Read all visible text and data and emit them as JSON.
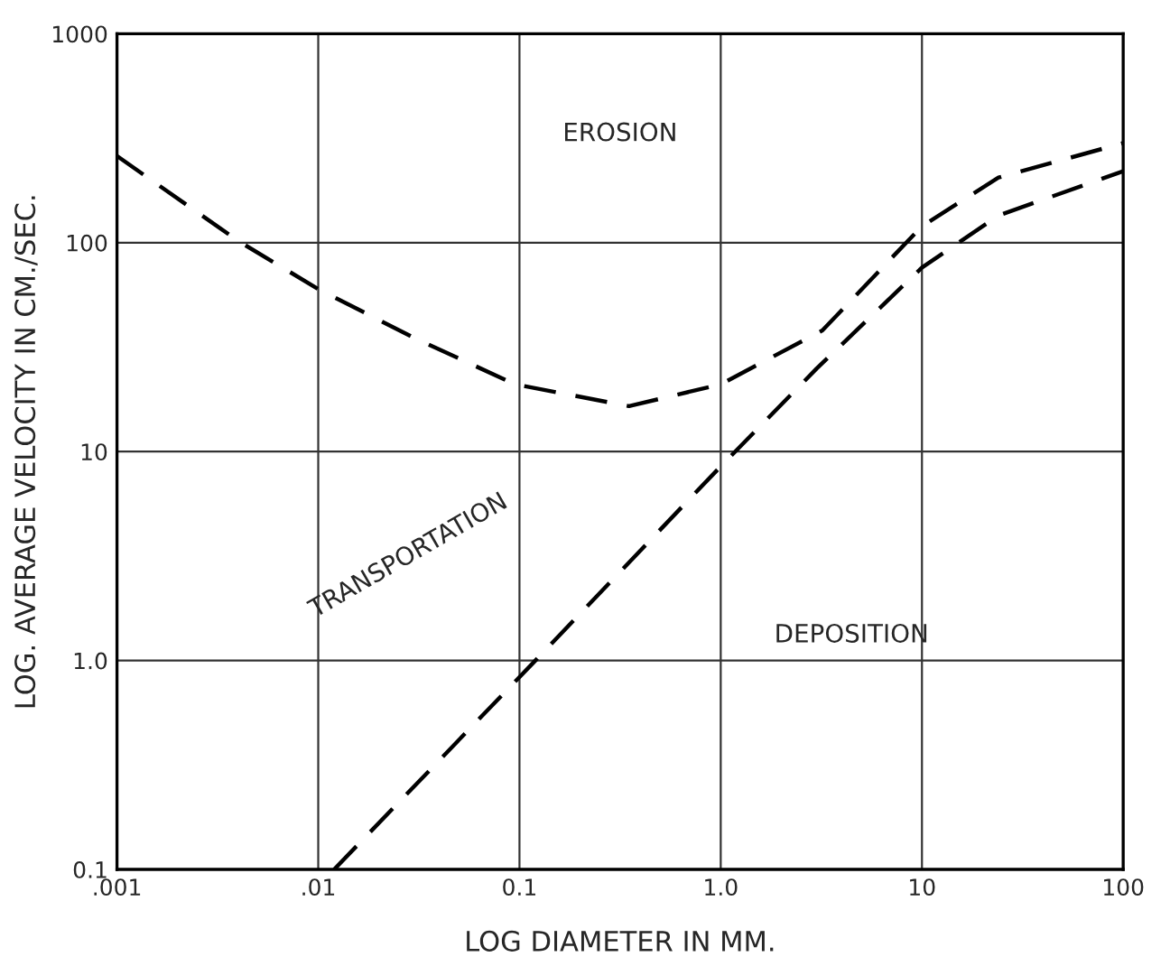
{
  "chart_data": {
    "type": "line",
    "xlabel": "LOG DIAMETER IN MM.",
    "ylabel": "LOG. AVERAGE VELOCITY IN CM./SEC.",
    "log": "xy",
    "grid": true,
    "line_style": "dashed",
    "marker": "none",
    "xlim": [
      0.001,
      100
    ],
    "ylim": [
      0.1,
      1000
    ],
    "xticks": [
      {
        "value": 0.001,
        "label": ".001"
      },
      {
        "value": 0.01,
        "label": ".01"
      },
      {
        "value": 0.1,
        "label": "0.1"
      },
      {
        "value": 1,
        "label": "1.0"
      },
      10,
      100
    ],
    "yticks": [
      {
        "value": 0.1,
        "label": "0.1"
      },
      {
        "value": 1,
        "label": "1.0"
      },
      10,
      100,
      1000
    ],
    "series": [
      {
        "color": "#000000",
        "x": [
          0.001,
          0.004,
          0.01,
          0.03,
          0.095,
          0.35,
          1.0,
          3.2,
          10,
          24,
          100
        ],
        "values": [
          260,
          102,
          60,
          35,
          21,
          16.5,
          21,
          38,
          120,
          205,
          300
        ]
      },
      {
        "color": "#000000",
        "x": [
          0.012,
          0.12,
          1.0,
          3.0,
          10,
          24,
          100
        ],
        "values": [
          0.1,
          1.0,
          8.5,
          25,
          76,
          135,
          220
        ]
      }
    ],
    "annotations": [
      "EROSION",
      "TRANSPORTATION",
      "DEPOSITION"
    ]
  }
}
